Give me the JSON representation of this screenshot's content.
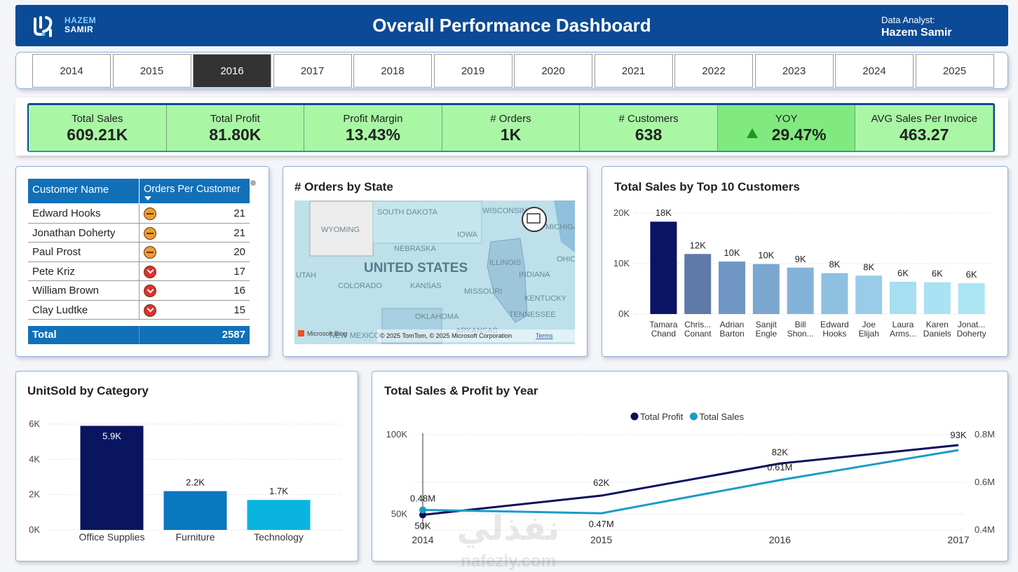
{
  "header": {
    "logo": [
      "HAZEM",
      "SAMIR"
    ],
    "title": "Overall Performance Dashboard",
    "analyst_label": "Data Analyst:",
    "analyst_name": "Hazem Samir"
  },
  "years": {
    "options": [
      "2014",
      "2015",
      "2016",
      "2017",
      "2018",
      "2019",
      "2020",
      "2021",
      "2022",
      "2023",
      "2024",
      "2025"
    ],
    "selected": "2016"
  },
  "kpis": [
    {
      "label": "Total Sales",
      "value": "609.21K"
    },
    {
      "label": "Total Profit",
      "value": "81.80K"
    },
    {
      "label": "Profit Margin",
      "value": "13.43%"
    },
    {
      "label": "# Orders",
      "value": "1K"
    },
    {
      "label": "# Customers",
      "value": "638"
    },
    {
      "label": "YOY",
      "value": "29.47%",
      "trend": "up"
    },
    {
      "label": "AVG Sales Per Invoice",
      "value": "463.27"
    }
  ],
  "table": {
    "columns": [
      "Customer Name",
      "Orders Per Customer"
    ],
    "rows": [
      {
        "name": "Edward Hooks",
        "orders": 21,
        "status": "flat"
      },
      {
        "name": "Jonathan Doherty",
        "orders": 21,
        "status": "flat"
      },
      {
        "name": "Paul Prost",
        "orders": 20,
        "status": "flat"
      },
      {
        "name": "Pete Kriz",
        "orders": 17,
        "status": "down"
      },
      {
        "name": "William Brown",
        "orders": 16,
        "status": "down"
      },
      {
        "name": "Clay Ludtke",
        "orders": 15,
        "status": "down"
      }
    ],
    "total": {
      "label": "Total",
      "value": 2587
    }
  },
  "map": {
    "title": "# Orders by State",
    "country": "UNITED STATES",
    "states": [
      "SOUTH DAKOTA",
      "WISCONSIN",
      "WYOMING",
      "IOWA",
      "NEBRASKA",
      "ILLINOIS",
      "INDIANA",
      "OHIO",
      "UTAH",
      "COLORADO",
      "KANSAS",
      "MISSOURI",
      "KENTUCKY",
      "TENNESSEE",
      "OKLAHOMA",
      "ARKANSAS",
      "NEW MEXICO",
      "MICHIGAN"
    ],
    "brand": "Microsoft Bing",
    "attribution": "© 2025 TomTom, © 2025 Microsoft Corporation",
    "terms": "Terms"
  },
  "chart_data": [
    {
      "type": "bar",
      "title": "Total Sales by Top 10 Customers",
      "categories": [
        [
          "Tamara",
          "Chand"
        ],
        [
          "Chris...",
          "Conant"
        ],
        [
          "Adrian",
          "Barton"
        ],
        [
          "Sanjit",
          "Engle"
        ],
        [
          "Bill",
          "Shon..."
        ],
        [
          "Edward",
          "Hooks"
        ],
        [
          "Joe",
          "Elijah"
        ],
        [
          "Laura",
          "Arms..."
        ],
        [
          "Karen",
          "Daniels"
        ],
        [
          "Jonat...",
          "Doherty"
        ]
      ],
      "values": [
        18300,
        11900,
        10400,
        9900,
        9200,
        8100,
        7600,
        6400,
        6300,
        6100
      ],
      "value_labels": [
        "18K",
        "12K",
        "10K",
        "10K",
        "9K",
        "8K",
        "8K",
        "6K",
        "6K",
        "6K"
      ],
      "colors": [
        "#0b1464",
        "#5f7aa8",
        "#6f97c6",
        "#7aa6d0",
        "#84b3d9",
        "#8ec0e1",
        "#98cce8",
        "#a6dff0",
        "#a9e2f2",
        "#ace5f4"
      ],
      "ylim": [
        0,
        20000
      ],
      "yticks": [
        {
          "value": 0,
          "label": "0K"
        },
        {
          "value": 10000,
          "label": "10K"
        },
        {
          "value": 20000,
          "label": "20K"
        }
      ],
      "grid": true
    },
    {
      "type": "bar",
      "title": "UnitSold by Category",
      "categories": [
        [
          "Office Supplies"
        ],
        [
          "Furniture"
        ],
        [
          "Technology"
        ]
      ],
      "values": [
        5900,
        2200,
        1700
      ],
      "value_labels": [
        "5.9K",
        "2.2K",
        "1.7K"
      ],
      "colors": [
        "#0a1560",
        "#0a78c0",
        "#0ab4e0"
      ],
      "ylim": [
        0,
        6000
      ],
      "yticks": [
        {
          "value": 0,
          "label": "0K"
        },
        {
          "value": 2000,
          "label": "2K"
        },
        {
          "value": 4000,
          "label": "4K"
        },
        {
          "value": 6000,
          "label": "6K"
        }
      ],
      "grid": true
    },
    {
      "type": "line",
      "title": "Total Sales & Profit by Year",
      "x": [
        2014,
        2015,
        2016,
        2017
      ],
      "xlim": [
        2014,
        2017
      ],
      "xticks": [
        2014,
        2015,
        2016,
        2017
      ],
      "series": [
        {
          "name": "Total Profit",
          "color": "#0b0f5c",
          "values": [
            49500,
            61600,
            81800,
            93400
          ],
          "value_labels": [
            "50K",
            "62K",
            "82K",
            "93K"
          ]
        },
        {
          "name": "Total Sales",
          "color": "#1a9cc6",
          "axis": "y2",
          "values": [
            484000,
            470000,
            609210,
            735000
          ],
          "value_labels": [
            "0.48M",
            "0.47M",
            "0.61M",
            null
          ]
        }
      ],
      "ylim": [
        40000,
        100000
      ],
      "yticks": [
        {
          "value": 50000,
          "label": "50K"
        },
        {
          "value": 100000,
          "label": "100K"
        }
      ],
      "y2lim": [
        400000,
        800000
      ],
      "y2ticks": [
        {
          "value": 400000,
          "label": "0.4M"
        },
        {
          "value": 600000,
          "label": "0.6M"
        },
        {
          "value": 800000,
          "label": "0.8M"
        }
      ],
      "grid": true,
      "legend": "top"
    }
  ],
  "watermark": [
    "نفذلي",
    "nafezly.com"
  ]
}
